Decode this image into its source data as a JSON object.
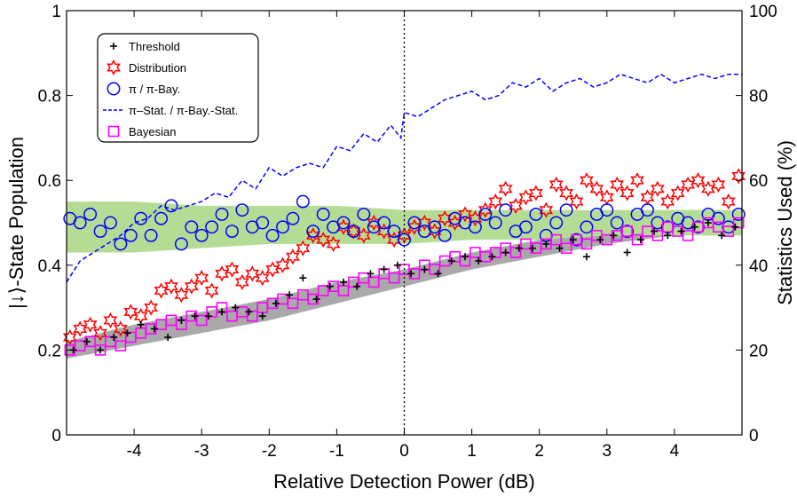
{
  "chart_data": {
    "type": "scatter",
    "xlabel": "Relative Detection Power (dB)",
    "ylabel_left": "|↓⟩-State Population",
    "ylabel_right": "Statistics Used (%)",
    "xlim": [
      -5,
      5
    ],
    "ylim_left": [
      0,
      1
    ],
    "ylim_right": [
      0,
      100
    ],
    "x_ticks": [
      -4,
      -3,
      -2,
      -1,
      0,
      1,
      2,
      3,
      4
    ],
    "y_ticks_left": [
      0,
      0.2,
      0.4,
      0.6,
      0.8,
      1
    ],
    "y_tick_labels_left": [
      "0",
      "0.2",
      "0.4",
      "0.6",
      "0.8",
      "1"
    ],
    "y_ticks_right": [
      0,
      20,
      40,
      60,
      80,
      100
    ],
    "grid": false,
    "legend_position": "top-left",
    "vertical_marker_x": 0,
    "series": [
      {
        "name": "Threshold",
        "marker": "plus",
        "color": "#000000",
        "x": [
          -4.9,
          -4.7,
          -4.5,
          -4.3,
          -4.1,
          -3.9,
          -3.7,
          -3.5,
          -3.3,
          -3.1,
          -2.9,
          -2.7,
          -2.5,
          -2.3,
          -2.1,
          -1.9,
          -1.7,
          -1.5,
          -1.3,
          -1.1,
          -0.9,
          -0.7,
          -0.5,
          -0.3,
          -0.1,
          0.1,
          0.3,
          0.5,
          0.7,
          0.9,
          1.1,
          1.3,
          1.5,
          1.7,
          1.9,
          2.1,
          2.3,
          2.5,
          2.7,
          2.9,
          3.1,
          3.3,
          3.5,
          3.7,
          3.9,
          4.1,
          4.3,
          4.5,
          4.7,
          4.9
        ],
        "values": [
          0.2,
          0.22,
          0.2,
          0.23,
          0.24,
          0.26,
          0.25,
          0.23,
          0.27,
          0.28,
          0.28,
          0.29,
          0.3,
          0.29,
          0.28,
          0.31,
          0.33,
          0.37,
          0.32,
          0.35,
          0.36,
          0.35,
          0.38,
          0.39,
          0.4,
          0.38,
          0.39,
          0.38,
          0.41,
          0.42,
          0.41,
          0.42,
          0.43,
          0.44,
          0.44,
          0.45,
          0.44,
          0.46,
          0.42,
          0.46,
          0.47,
          0.43,
          0.46,
          0.48,
          0.47,
          0.48,
          0.49,
          0.5,
          0.47,
          0.49
        ]
      },
      {
        "name": "Distribution",
        "marker": "hexagram",
        "color": "#ff0000",
        "x": [
          -4.95,
          -4.8,
          -4.65,
          -4.5,
          -4.35,
          -4.2,
          -4.05,
          -3.9,
          -3.75,
          -3.6,
          -3.45,
          -3.3,
          -3.15,
          -3.0,
          -2.85,
          -2.7,
          -2.55,
          -2.4,
          -2.25,
          -2.1,
          -1.95,
          -1.8,
          -1.65,
          -1.5,
          -1.35,
          -1.2,
          -1.05,
          -0.9,
          -0.75,
          -0.6,
          -0.45,
          -0.3,
          -0.15,
          0.0,
          0.15,
          0.3,
          0.45,
          0.6,
          0.75,
          0.9,
          1.05,
          1.2,
          1.35,
          1.5,
          1.65,
          1.8,
          1.95,
          2.1,
          2.25,
          2.4,
          2.55,
          2.7,
          2.85,
          3.0,
          3.15,
          3.3,
          3.45,
          3.6,
          3.75,
          3.9,
          4.05,
          4.2,
          4.35,
          4.5,
          4.65,
          4.8,
          4.95
        ],
        "values": [
          0.23,
          0.25,
          0.26,
          0.24,
          0.27,
          0.25,
          0.29,
          0.28,
          0.3,
          0.34,
          0.35,
          0.33,
          0.35,
          0.37,
          0.34,
          0.38,
          0.39,
          0.36,
          0.38,
          0.37,
          0.39,
          0.4,
          0.42,
          0.44,
          0.47,
          0.46,
          0.45,
          0.49,
          0.48,
          0.47,
          0.5,
          0.48,
          0.46,
          0.47,
          0.49,
          0.5,
          0.48,
          0.51,
          0.5,
          0.52,
          0.51,
          0.53,
          0.55,
          0.58,
          0.54,
          0.56,
          0.57,
          0.53,
          0.59,
          0.57,
          0.55,
          0.6,
          0.58,
          0.56,
          0.59,
          0.57,
          0.6,
          0.56,
          0.58,
          0.55,
          0.57,
          0.59,
          0.6,
          0.58,
          0.59,
          0.55,
          0.61
        ]
      },
      {
        "name": "π / π-Bay.",
        "marker": "circle",
        "color": "#0000ff",
        "x": [
          -4.95,
          -4.8,
          -4.65,
          -4.5,
          -4.35,
          -4.2,
          -4.05,
          -3.9,
          -3.75,
          -3.6,
          -3.45,
          -3.3,
          -3.15,
          -3.0,
          -2.85,
          -2.7,
          -2.55,
          -2.4,
          -2.25,
          -2.1,
          -1.95,
          -1.8,
          -1.65,
          -1.5,
          -1.35,
          -1.2,
          -1.05,
          -0.9,
          -0.75,
          -0.6,
          -0.45,
          -0.3,
          -0.15,
          0.0,
          0.15,
          0.3,
          0.45,
          0.6,
          0.75,
          0.9,
          1.05,
          1.2,
          1.35,
          1.5,
          1.65,
          1.8,
          1.95,
          2.1,
          2.25,
          2.4,
          2.55,
          2.7,
          2.85,
          3.0,
          3.15,
          3.3,
          3.45,
          3.6,
          3.75,
          3.9,
          4.05,
          4.2,
          4.35,
          4.5,
          4.65,
          4.8,
          4.95
        ],
        "values": [
          0.51,
          0.5,
          0.52,
          0.48,
          0.5,
          0.45,
          0.47,
          0.51,
          0.47,
          0.51,
          0.54,
          0.45,
          0.49,
          0.47,
          0.49,
          0.52,
          0.48,
          0.53,
          0.49,
          0.5,
          0.47,
          0.49,
          0.51,
          0.55,
          0.48,
          0.52,
          0.49,
          0.5,
          0.48,
          0.52,
          0.49,
          0.5,
          0.48,
          0.46,
          0.5,
          0.48,
          0.49,
          0.47,
          0.51,
          0.5,
          0.49,
          0.52,
          0.5,
          0.53,
          0.48,
          0.49,
          0.52,
          0.47,
          0.5,
          0.53,
          0.46,
          0.49,
          0.52,
          0.53,
          0.5,
          0.48,
          0.52,
          0.53,
          0.5,
          0.49,
          0.51,
          0.5,
          0.49,
          0.52,
          0.51,
          0.49,
          0.52
        ]
      },
      {
        "name": "π–Stat. / π-Bay.-Stat.",
        "axis": "right",
        "style": "dashed-line",
        "color": "#0000ff",
        "x": [
          -5.0,
          -4.8,
          -4.6,
          -4.4,
          -4.2,
          -4.0,
          -3.8,
          -3.6,
          -3.4,
          -3.2,
          -3.0,
          -2.8,
          -2.6,
          -2.4,
          -2.2,
          -2.0,
          -1.8,
          -1.6,
          -1.4,
          -1.2,
          -1.0,
          -0.8,
          -0.6,
          -0.4,
          -0.2,
          -0.05,
          0.0,
          0.2,
          0.4,
          0.6,
          0.8,
          1.0,
          1.2,
          1.4,
          1.6,
          1.8,
          2.0,
          2.2,
          2.4,
          2.6,
          2.8,
          3.0,
          3.2,
          3.4,
          3.6,
          3.8,
          4.0,
          4.2,
          4.4,
          4.6,
          4.8,
          5.0
        ],
        "values": [
          36,
          41,
          43,
          45,
          47,
          50,
          51,
          54,
          53,
          54,
          55,
          57,
          56,
          60,
          58,
          63,
          61,
          63,
          64,
          63,
          68,
          67,
          71,
          69,
          73,
          70,
          76,
          75,
          77,
          79,
          80,
          81,
          79,
          80,
          83,
          82,
          84,
          81,
          83,
          84,
          82,
          83,
          85,
          84,
          83,
          85,
          83,
          84,
          85,
          84,
          85,
          85
        ]
      },
      {
        "name": "Bayesian",
        "marker": "square",
        "color": "#ff00ff",
        "x": [
          -4.95,
          -4.8,
          -4.65,
          -4.5,
          -4.35,
          -4.2,
          -4.05,
          -3.9,
          -3.75,
          -3.6,
          -3.45,
          -3.3,
          -3.15,
          -3.0,
          -2.85,
          -2.7,
          -2.55,
          -2.4,
          -2.25,
          -2.1,
          -1.95,
          -1.8,
          -1.65,
          -1.5,
          -1.35,
          -1.2,
          -1.05,
          -0.9,
          -0.75,
          -0.6,
          -0.45,
          -0.3,
          -0.15,
          0.0,
          0.15,
          0.3,
          0.45,
          0.6,
          0.75,
          0.9,
          1.05,
          1.2,
          1.35,
          1.5,
          1.65,
          1.8,
          1.95,
          2.1,
          2.25,
          2.4,
          2.55,
          2.7,
          2.85,
          3.0,
          3.15,
          3.3,
          3.45,
          3.6,
          3.75,
          3.9,
          4.05,
          4.2,
          4.35,
          4.5,
          4.65,
          4.8,
          4.95
        ],
        "values": [
          0.2,
          0.21,
          0.22,
          0.2,
          0.22,
          0.21,
          0.23,
          0.24,
          0.25,
          0.26,
          0.27,
          0.26,
          0.28,
          0.27,
          0.29,
          0.3,
          0.28,
          0.29,
          0.28,
          0.3,
          0.31,
          0.32,
          0.31,
          0.33,
          0.32,
          0.34,
          0.35,
          0.34,
          0.36,
          0.37,
          0.36,
          0.38,
          0.37,
          0.39,
          0.38,
          0.4,
          0.39,
          0.41,
          0.42,
          0.41,
          0.43,
          0.42,
          0.43,
          0.44,
          0.43,
          0.45,
          0.44,
          0.45,
          0.46,
          0.44,
          0.46,
          0.45,
          0.47,
          0.46,
          0.47,
          0.48,
          0.46,
          0.48,
          0.47,
          0.49,
          0.48,
          0.47,
          0.49,
          0.5,
          0.49,
          0.48,
          0.5
        ]
      }
    ],
    "bands": [
      {
        "color": "#a9a9a9",
        "x": [
          -5,
          -4,
          -3,
          -2,
          -1,
          0,
          1,
          2,
          3,
          4,
          5
        ],
        "lower": [
          0.18,
          0.21,
          0.24,
          0.27,
          0.31,
          0.35,
          0.39,
          0.42,
          0.45,
          0.47,
          0.49
        ],
        "upper": [
          0.22,
          0.26,
          0.29,
          0.32,
          0.36,
          0.39,
          0.43,
          0.46,
          0.48,
          0.5,
          0.52
        ]
      },
      {
        "color": "#b5dc95",
        "x": [
          -5,
          -4,
          -3,
          -2,
          -1,
          0,
          1,
          2,
          3,
          4,
          5
        ],
        "lower": [
          0.43,
          0.43,
          0.44,
          0.45,
          0.45,
          0.45,
          0.46,
          0.46,
          0.47,
          0.47,
          0.47
        ],
        "upper": [
          0.55,
          0.55,
          0.54,
          0.54,
          0.54,
          0.53,
          0.53,
          0.53,
          0.53,
          0.53,
          0.53
        ]
      }
    ]
  }
}
